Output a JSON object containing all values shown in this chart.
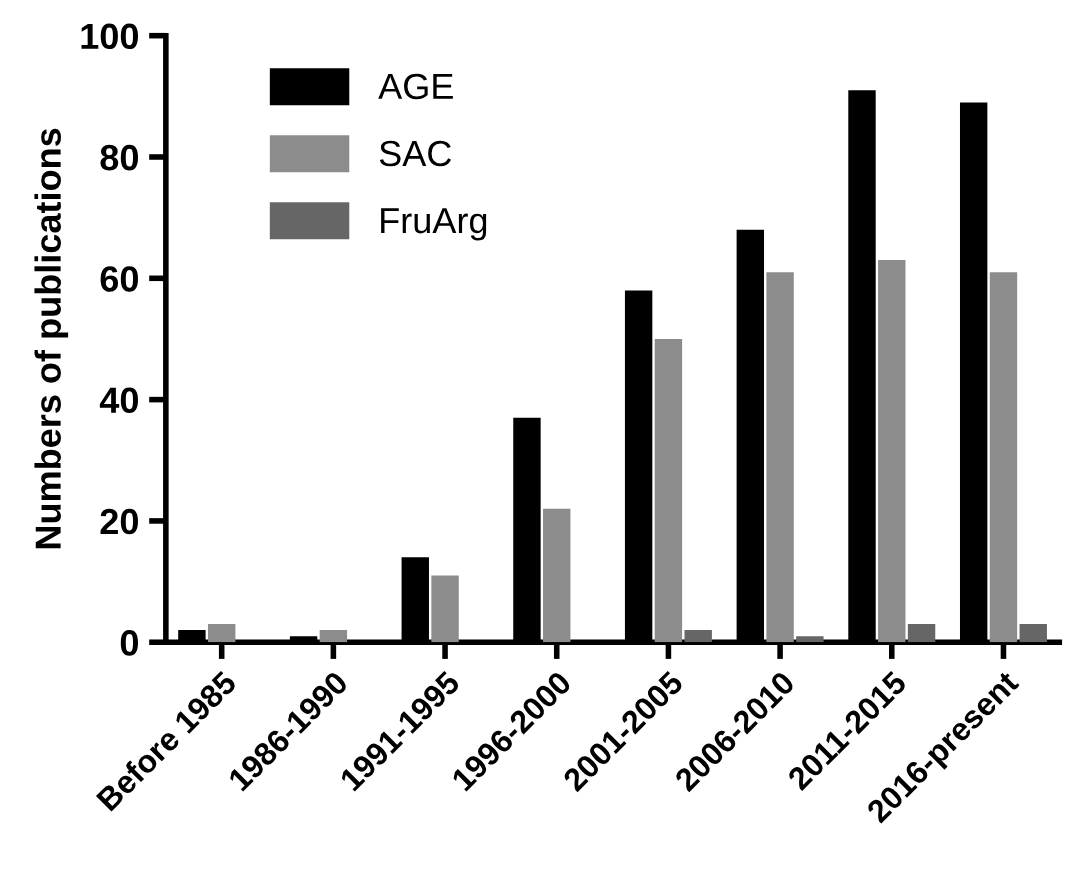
{
  "chart_data": {
    "type": "bar",
    "ylabel": "Numbers of publications",
    "categories": [
      "Before 1985",
      "1986-1990",
      "1991-1995",
      "1996-2000",
      "2001-2005",
      "2006-2010",
      "2011-2015",
      "2016-present"
    ],
    "series": [
      {
        "name": "AGE",
        "color": "#000000",
        "values": [
          2,
          1,
          14,
          37,
          58,
          68,
          91,
          89
        ]
      },
      {
        "name": "SAC",
        "color": "#8c8c8c",
        "values": [
          3,
          2,
          11,
          22,
          50,
          61,
          63,
          61
        ]
      },
      {
        "name": "FruArg",
        "color": "#666666",
        "values": [
          0,
          0,
          0,
          0,
          2,
          1,
          3,
          3
        ]
      }
    ],
    "ylim": [
      0,
      100
    ],
    "yticks": [
      0,
      20,
      40,
      60,
      80,
      100
    ],
    "grid": false,
    "legend": "top left"
  }
}
